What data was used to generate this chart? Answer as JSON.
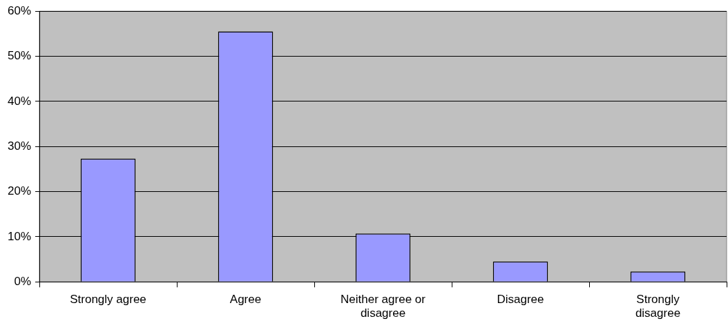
{
  "chart_data": {
    "type": "bar",
    "categories": [
      "Strongly agree",
      "Agree",
      "Neither agree or disagree",
      "Disagree",
      "Strongly disagree"
    ],
    "values": [
      27.3,
      55.5,
      10.7,
      4.5,
      2.3
    ],
    "color": "#9999ff",
    "ylim": [
      0,
      60
    ],
    "yticks": [
      {
        "value": 0,
        "label": "0%"
      },
      {
        "value": 10,
        "label": "10%"
      },
      {
        "value": 20,
        "label": "20%"
      },
      {
        "value": 30,
        "label": "30%"
      },
      {
        "value": 40,
        "label": "40%"
      },
      {
        "value": 50,
        "label": "50%"
      },
      {
        "value": 60,
        "label": "60%"
      }
    ],
    "grid": "y",
    "legend": false
  }
}
